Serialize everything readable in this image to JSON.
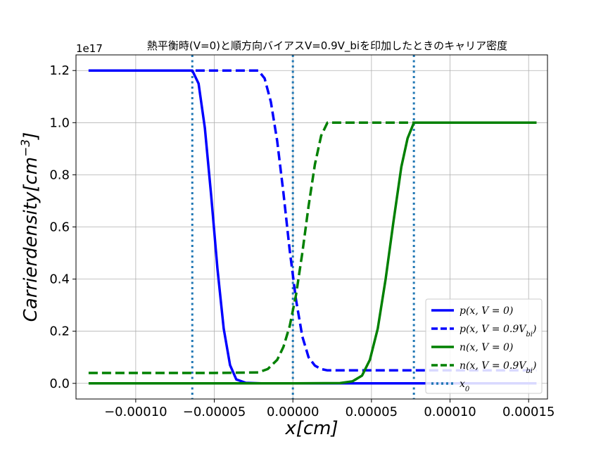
{
  "chart_data": {
    "type": "line",
    "title": "熱平衡時(V=0)と順方向バイアスV=0.9V_biを印加したときのキャリア密度",
    "xlabel": "x[cm]",
    "ylabel": "Carrierdensity[cm^-3]",
    "y_offset_text": "1e17",
    "xlim": [
      -0.000138,
      0.000162
    ],
    "ylim": [
      -0.06,
      1.26
    ],
    "y_scale_factor": 1e+17,
    "grid": true,
    "legend_position": "lower-right",
    "x_ticks": [
      -0.0001,
      -5e-05,
      0.0,
      5e-05,
      0.0001,
      0.00015
    ],
    "x_tick_labels": [
      "−0.00010",
      "−0.00005",
      "0.00000",
      "0.00005",
      "0.00010",
      "0.00015"
    ],
    "y_ticks": [
      0.0,
      0.2,
      0.4,
      0.6,
      0.8,
      1.0,
      1.2
    ],
    "y_tick_labels": [
      "0.0",
      "0.2",
      "0.4",
      "0.6",
      "0.8",
      "1.0",
      "1.2"
    ],
    "series": [
      {
        "name": "p(x,V=0)",
        "color": "#0000ff",
        "style": "solid",
        "x": [
          -0.00013,
          -6.4e-05,
          -6e-05,
          -5.6e-05,
          -5.2e-05,
          -4.8e-05,
          -4.4e-05,
          -4e-05,
          -3.6e-05,
          -3e-05,
          -2e-05,
          0.0,
          5e-05,
          0.0001,
          0.000155
        ],
        "y": [
          1.2,
          1.2,
          1.15,
          0.98,
          0.72,
          0.44,
          0.21,
          0.07,
          0.015,
          0.002,
          0.0,
          0.0,
          0.0,
          0.0,
          0.0
        ]
      },
      {
        "name": "p(x,V=0.9V_bi)",
        "color": "#0000ff",
        "style": "dashed",
        "x": [
          -0.00013,
          -4e-05,
          -2.2e-05,
          -1.8e-05,
          -1.4e-05,
          -1e-05,
          -6e-06,
          -2e-06,
          2e-06,
          6e-06,
          1e-05,
          1.4e-05,
          1.8e-05,
          2.2e-05,
          5e-05,
          0.0001,
          0.000155
        ],
        "y": [
          1.2,
          1.2,
          1.2,
          1.17,
          1.08,
          0.93,
          0.73,
          0.51,
          0.32,
          0.18,
          0.1,
          0.068,
          0.055,
          0.05,
          0.05,
          0.05,
          0.05
        ]
      },
      {
        "name": "n(x,V=0)",
        "color": "#008000",
        "style": "solid",
        "x": [
          -0.00013,
          -5e-05,
          0.0,
          3e-05,
          3.8e-05,
          4.4e-05,
          4.9e-05,
          5.4e-05,
          5.9e-05,
          6.4e-05,
          6.9e-05,
          7.3e-05,
          7.7e-05,
          0.0001,
          0.000155
        ],
        "y": [
          0.0,
          0.0,
          0.0,
          0.001,
          0.008,
          0.03,
          0.09,
          0.21,
          0.4,
          0.62,
          0.83,
          0.94,
          1.0,
          1.0,
          1.0
        ]
      },
      {
        "name": "n(x,V=0.9V_bi)",
        "color": "#008000",
        "style": "dashed",
        "x": [
          -0.00013,
          -5e-05,
          -2.2e-05,
          -1.6e-05,
          -1e-05,
          -6e-06,
          -2e-06,
          2e-06,
          6e-06,
          1e-05,
          1.4e-05,
          1.8e-05,
          2.2e-05,
          4e-05,
          0.0001,
          0.000155
        ],
        "y": [
          0.04,
          0.04,
          0.042,
          0.055,
          0.09,
          0.14,
          0.22,
          0.34,
          0.5,
          0.68,
          0.84,
          0.95,
          1.0,
          1.0,
          1.0,
          1.0
        ]
      }
    ],
    "vlines": {
      "name": "x_0",
      "color": "#1f77b4",
      "style": "dotted",
      "x": [
        -6.4e-05,
        0.0,
        7.7e-05
      ]
    },
    "legend": [
      {
        "label": "p(x, V = 0)",
        "color": "#0000ff",
        "style": "solid"
      },
      {
        "label": "p(x, V = 0.9V_bi)",
        "color": "#0000ff",
        "style": "dashed"
      },
      {
        "label": "n(x, V = 0)",
        "color": "#008000",
        "style": "solid"
      },
      {
        "label": "n(x, V = 0.9V_bi)",
        "color": "#008000",
        "style": "dashed"
      },
      {
        "label": "x_0",
        "color": "#1f77b4",
        "style": "dotted"
      }
    ]
  }
}
